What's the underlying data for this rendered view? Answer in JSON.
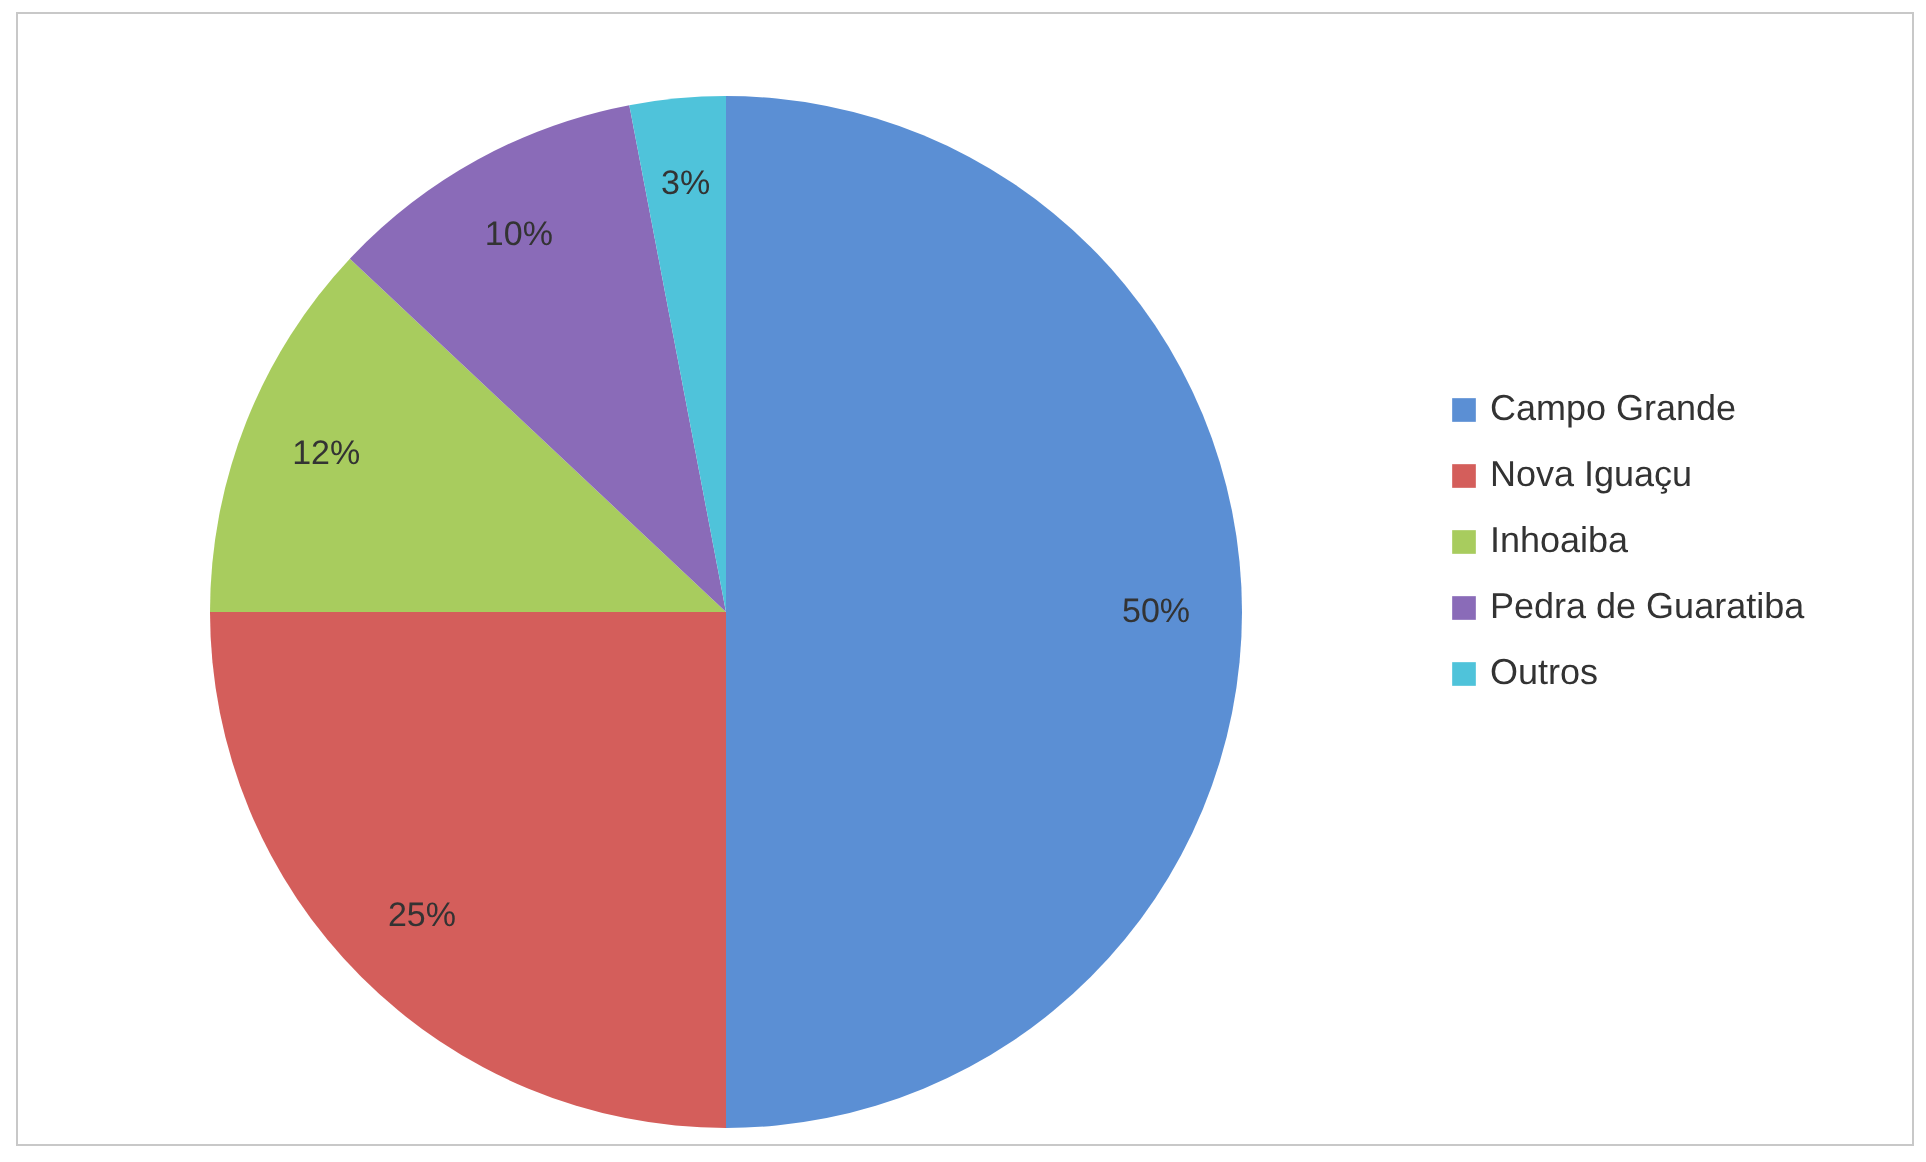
{
  "chart_data": {
    "type": "pie",
    "categories": [
      "Campo Grande",
      "Nova Iguaçu",
      "Inhoaiba",
      "Pedra de Guaratiba",
      "Outros"
    ],
    "values": [
      50,
      25,
      12,
      10,
      3
    ],
    "colors": [
      "#5b8fd4",
      "#d45e5b",
      "#a8cc5e",
      "#8a6bb8",
      "#4fc3da"
    ],
    "value_labels": [
      "50%",
      "25%",
      "12%",
      "10%",
      "3%"
    ],
    "legend": "right"
  }
}
